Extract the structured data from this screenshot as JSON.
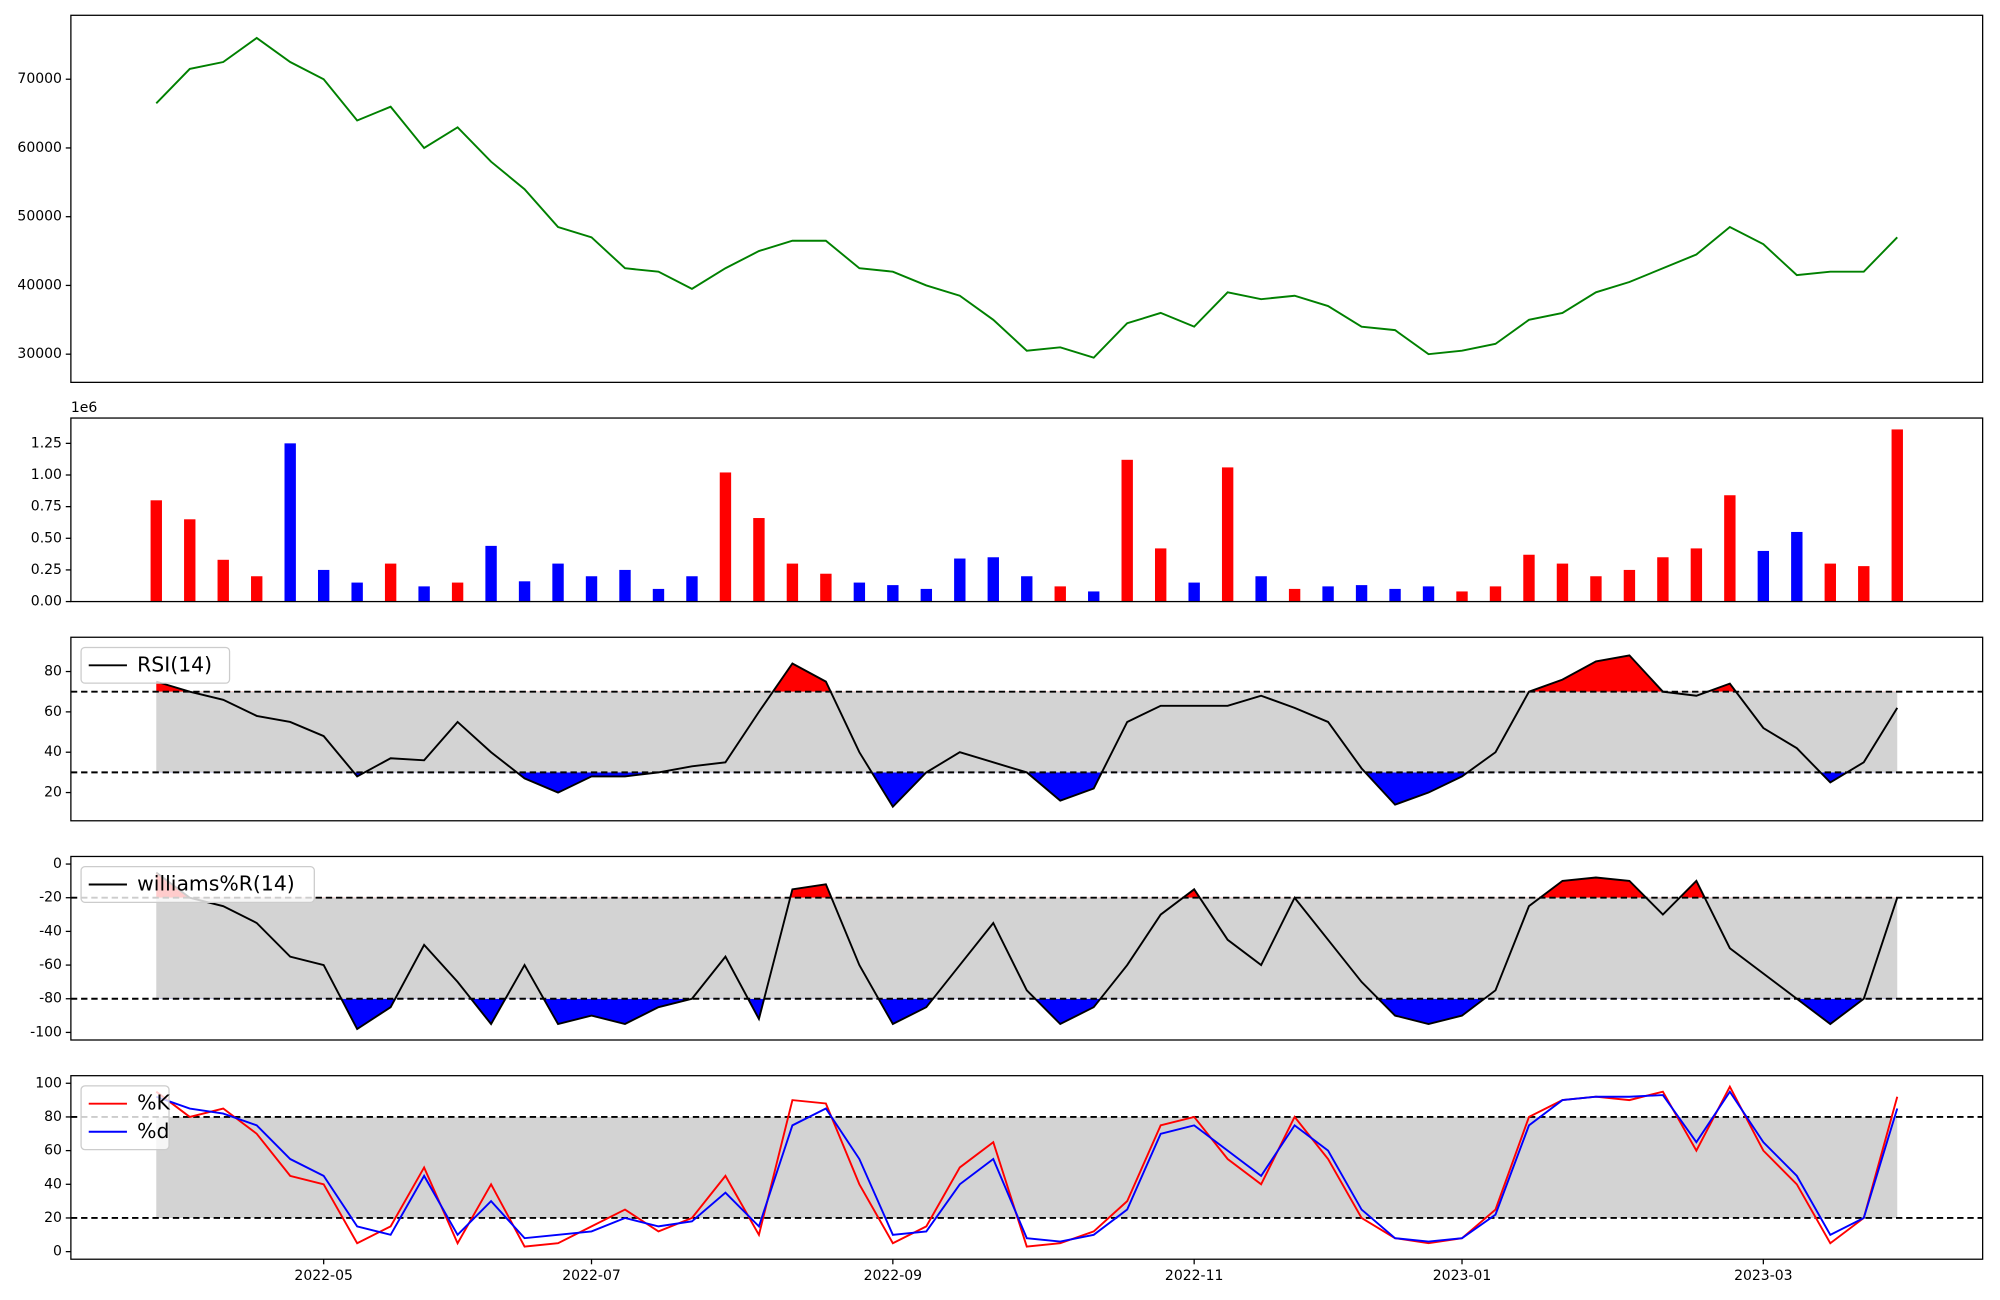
{
  "chart_data": [
    {
      "type": "line",
      "color": "#008000",
      "values": [
        66500,
        71500,
        72500,
        76000,
        72500,
        70000,
        64000,
        66000,
        60000,
        63000,
        58000,
        54000,
        48500,
        47000,
        42500,
        42000,
        39500,
        42500,
        45000,
        46500,
        46500,
        42500,
        42000,
        40000,
        38500,
        35000,
        30500,
        31000,
        29500,
        34500,
        36000,
        34000,
        39000,
        38000,
        38500,
        37000,
        34000,
        33500,
        30000,
        30500,
        31500,
        35000,
        36000,
        39000,
        40500,
        42500,
        44500,
        48500,
        46000,
        41500,
        42000,
        42000,
        47000
      ],
      "ylim": [
        25900,
        79300
      ],
      "yticks": [
        30000,
        40000,
        50000,
        60000,
        70000
      ]
    },
    {
      "type": "bar",
      "offset_label": "1e6",
      "values": [
        0.8,
        0.65,
        0.33,
        0.2,
        1.25,
        0.25,
        0.15,
        0.3,
        0.12,
        0.15,
        0.44,
        0.16,
        0.3,
        0.2,
        0.25,
        0.1,
        0.2,
        1.02,
        0.66,
        0.3,
        0.22,
        0.15,
        0.13,
        0.1,
        0.34,
        0.35,
        0.2,
        0.12,
        0.08,
        1.12,
        0.42,
        0.15,
        1.06,
        0.2,
        0.1,
        0.12,
        0.13,
        0.1,
        0.12,
        0.08,
        0.12,
        0.37,
        0.3,
        0.2,
        0.25,
        0.35,
        0.42,
        0.84,
        0.4,
        0.55,
        0.3,
        0.28,
        1.36
      ],
      "colors": [
        "#ff0000",
        "#ff0000",
        "#ff0000",
        "#ff0000",
        "#0000ff",
        "#0000ff",
        "#0000ff",
        "#ff0000",
        "#0000ff",
        "#ff0000",
        "#0000ff",
        "#0000ff",
        "#0000ff",
        "#0000ff",
        "#0000ff",
        "#0000ff",
        "#0000ff",
        "#ff0000",
        "#ff0000",
        "#ff0000",
        "#ff0000",
        "#0000ff",
        "#0000ff",
        "#0000ff",
        "#0000ff",
        "#0000ff",
        "#0000ff",
        "#ff0000",
        "#0000ff",
        "#ff0000",
        "#ff0000",
        "#0000ff",
        "#ff0000",
        "#0000ff",
        "#ff0000",
        "#0000ff",
        "#0000ff",
        "#0000ff",
        "#0000ff",
        "#ff0000",
        "#ff0000",
        "#ff0000",
        "#ff0000",
        "#ff0000",
        "#ff0000",
        "#ff0000",
        "#ff0000",
        "#ff0000",
        "#0000ff",
        "#0000ff",
        "#ff0000",
        "#ff0000",
        "#ff0000"
      ],
      "ylim": [
        0,
        1.45
      ],
      "yticks": [
        {
          "value": 0,
          "label": "0.00"
        },
        {
          "value": 0.25,
          "label": "0.25"
        },
        {
          "value": 0.5,
          "label": "0.50"
        },
        {
          "value": 0.75,
          "label": "0.75"
        },
        {
          "value": 1,
          "label": "1.00"
        },
        {
          "value": 1.25,
          "label": "1.25"
        }
      ]
    },
    {
      "type": "line",
      "legend": "upper left",
      "levels": [
        30,
        70
      ],
      "band_color": "#d3d3d3",
      "fill_extremes": true,
      "above_color": "#ff0000",
      "below_color": "#0000ff",
      "series": [
        {
          "name": "RSI(14)",
          "color": "#000000",
          "values": [
            75,
            70,
            66,
            58,
            55,
            48,
            28,
            37,
            36,
            55,
            40,
            27,
            20,
            28,
            28,
            30,
            33,
            35,
            60,
            84,
            75,
            40,
            13,
            30,
            40,
            35,
            30,
            16,
            22,
            55,
            63,
            63,
            63,
            68,
            62,
            55,
            32,
            14,
            20,
            28,
            40,
            70,
            76,
            85,
            88,
            70,
            68,
            74,
            52,
            42,
            25,
            35,
            62
          ]
        }
      ],
      "ylim": [
        6,
        97
      ],
      "yticks": [
        20,
        40,
        60,
        80
      ]
    },
    {
      "type": "line",
      "legend": "upper left",
      "levels": [
        -80,
        -20
      ],
      "band_color": "#d3d3d3",
      "fill_extremes": true,
      "above_color": "#ff0000",
      "below_color": "#0000ff",
      "series": [
        {
          "name": "williams%R(14)",
          "color": "#000000",
          "values": [
            -5,
            -20,
            -25,
            -35,
            -55,
            -60,
            -98,
            -85,
            -48,
            -70,
            -95,
            -60,
            -95,
            -90,
            -95,
            -85,
            -80,
            -55,
            -92,
            -15,
            -12,
            -60,
            -95,
            -85,
            -60,
            -35,
            -75,
            -95,
            -85,
            -60,
            -30,
            -15,
            -45,
            -60,
            -20,
            -45,
            -70,
            -90,
            -95,
            -90,
            -75,
            -25,
            -10,
            -8,
            -10,
            -30,
            -10,
            -50,
            -65,
            -80,
            -95,
            -80,
            -20
          ]
        }
      ],
      "ylim": [
        -104.5,
        4.5
      ],
      "yticks": [
        -100,
        -80,
        -60,
        -40,
        -20,
        0
      ]
    },
    {
      "type": "line",
      "legend": "upper left",
      "levels": [
        20,
        80
      ],
      "band_color": "#d3d3d3",
      "fill_extremes": false,
      "series": [
        {
          "name": "%K",
          "color": "#ff0000",
          "values": [
            95,
            80,
            85,
            70,
            45,
            40,
            5,
            15,
            50,
            5,
            40,
            3,
            5,
            15,
            25,
            12,
            20,
            45,
            10,
            90,
            88,
            40,
            5,
            15,
            50,
            65,
            3,
            5,
            12,
            30,
            75,
            80,
            55,
            40,
            80,
            55,
            20,
            8,
            5,
            8,
            25,
            80,
            90,
            92,
            90,
            95,
            60,
            98,
            60,
            40,
            5,
            20,
            92
          ]
        },
        {
          "name": "%d",
          "color": "#0000ff",
          "values": [
            92,
            85,
            82,
            75,
            55,
            45,
            15,
            10,
            45,
            10,
            30,
            8,
            10,
            12,
            20,
            15,
            18,
            35,
            15,
            75,
            85,
            55,
            10,
            12,
            40,
            55,
            8,
            6,
            10,
            25,
            70,
            75,
            60,
            45,
            75,
            60,
            25,
            8,
            6,
            8,
            22,
            75,
            90,
            92,
            92,
            93,
            65,
            95,
            65,
            45,
            10,
            20,
            85
          ]
        }
      ],
      "ylim": [
        -4.5,
        104.5
      ],
      "yticks": [
        0,
        20,
        40,
        60,
        80,
        100
      ],
      "categories": [
        null,
        null,
        null,
        null,
        null,
        "2022-05",
        null,
        null,
        null,
        null,
        null,
        null,
        null,
        "2022-07",
        null,
        null,
        null,
        null,
        null,
        null,
        null,
        null,
        "2022-09",
        null,
        null,
        null,
        null,
        null,
        null,
        null,
        null,
        "2022-11",
        null,
        null,
        null,
        null,
        null,
        null,
        null,
        "2023-01",
        null,
        null,
        null,
        null,
        null,
        null,
        null,
        null,
        "2023-03",
        null,
        null,
        null,
        null
      ]
    }
  ]
}
